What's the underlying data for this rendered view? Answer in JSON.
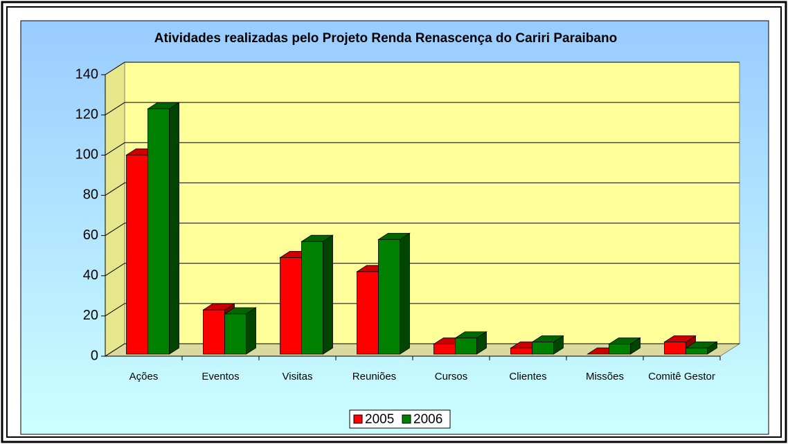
{
  "chart_data": {
    "type": "bar3d",
    "title": "Atividades realizadas pelo Projeto Renda Renascença do Cariri Paraibano",
    "categories": [
      "Ações",
      "Eventos",
      "Visitas",
      "Reuniões",
      "Cursos",
      "Clientes",
      "Missões",
      "Comitê Gestor"
    ],
    "series": [
      {
        "name": "2005",
        "color": "#ff0000",
        "values": [
          99,
          22,
          48,
          41,
          5,
          3,
          0,
          6
        ]
      },
      {
        "name": "2006",
        "color": "#008000",
        "values": [
          122,
          20,
          56,
          57,
          8,
          6,
          5,
          3
        ]
      }
    ],
    "ylim": [
      0,
      140
    ],
    "yticks": [
      0,
      20,
      40,
      60,
      80,
      100,
      120,
      140
    ],
    "grid": true,
    "legend": "bottom"
  }
}
